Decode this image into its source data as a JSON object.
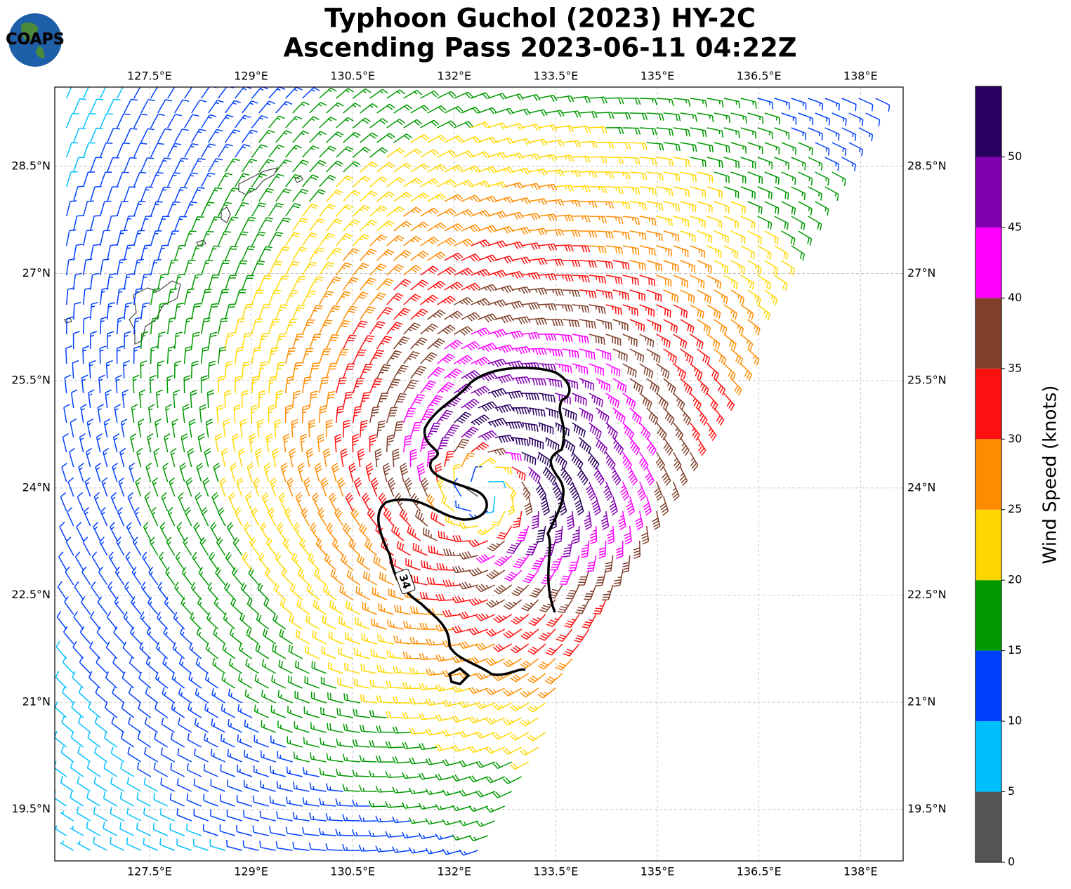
{
  "title": [
    "Typhoon Guchol (2023) HY-2C",
    "Ascending Pass 2023-06-11 04:22Z"
  ],
  "logo": "COAPS",
  "map": {
    "xlim": [
      126.1,
      138.63
    ],
    "ylim": [
      18.78,
      29.61
    ],
    "xticks": [
      {
        "value": 127.5,
        "label": "127.5°E"
      },
      {
        "value": 129,
        "label": "129°E"
      },
      {
        "value": 130.5,
        "label": "130.5°E"
      },
      {
        "value": 132,
        "label": "132°E"
      },
      {
        "value": 133.5,
        "label": "133.5°E"
      },
      {
        "value": 135,
        "label": "135°E"
      },
      {
        "value": 136.5,
        "label": "136.5°E"
      },
      {
        "value": 138,
        "label": "138°E"
      }
    ],
    "yticks": [
      {
        "value": 19.5,
        "label": "19.5°N"
      },
      {
        "value": 21,
        "label": "21°N"
      },
      {
        "value": 22.5,
        "label": "22.5°N"
      },
      {
        "value": 24,
        "label": "24°N"
      },
      {
        "value": 25.5,
        "label": "25.5°N"
      },
      {
        "value": 27,
        "label": "27°N"
      },
      {
        "value": 28.5,
        "label": "28.5°N"
      }
    ],
    "grid": true,
    "contour_label": 34
  },
  "colorbar": {
    "bounds": [
      0,
      5,
      10,
      15,
      20,
      25,
      30,
      35,
      40,
      45,
      50,
      55
    ],
    "colors": [
      "#555555",
      "#00bfff",
      "#0040ff",
      "#009900",
      "#ffd700",
      "#ff8c00",
      "#ff1010",
      "#7f3f2a",
      "#ff00ff",
      "#8000b0",
      "#2a0060"
    ],
    "ticks": [
      0,
      5,
      10,
      15,
      20,
      25,
      30,
      35,
      40,
      45,
      50
    ],
    "label": "Wind Speed (knots)"
  }
}
